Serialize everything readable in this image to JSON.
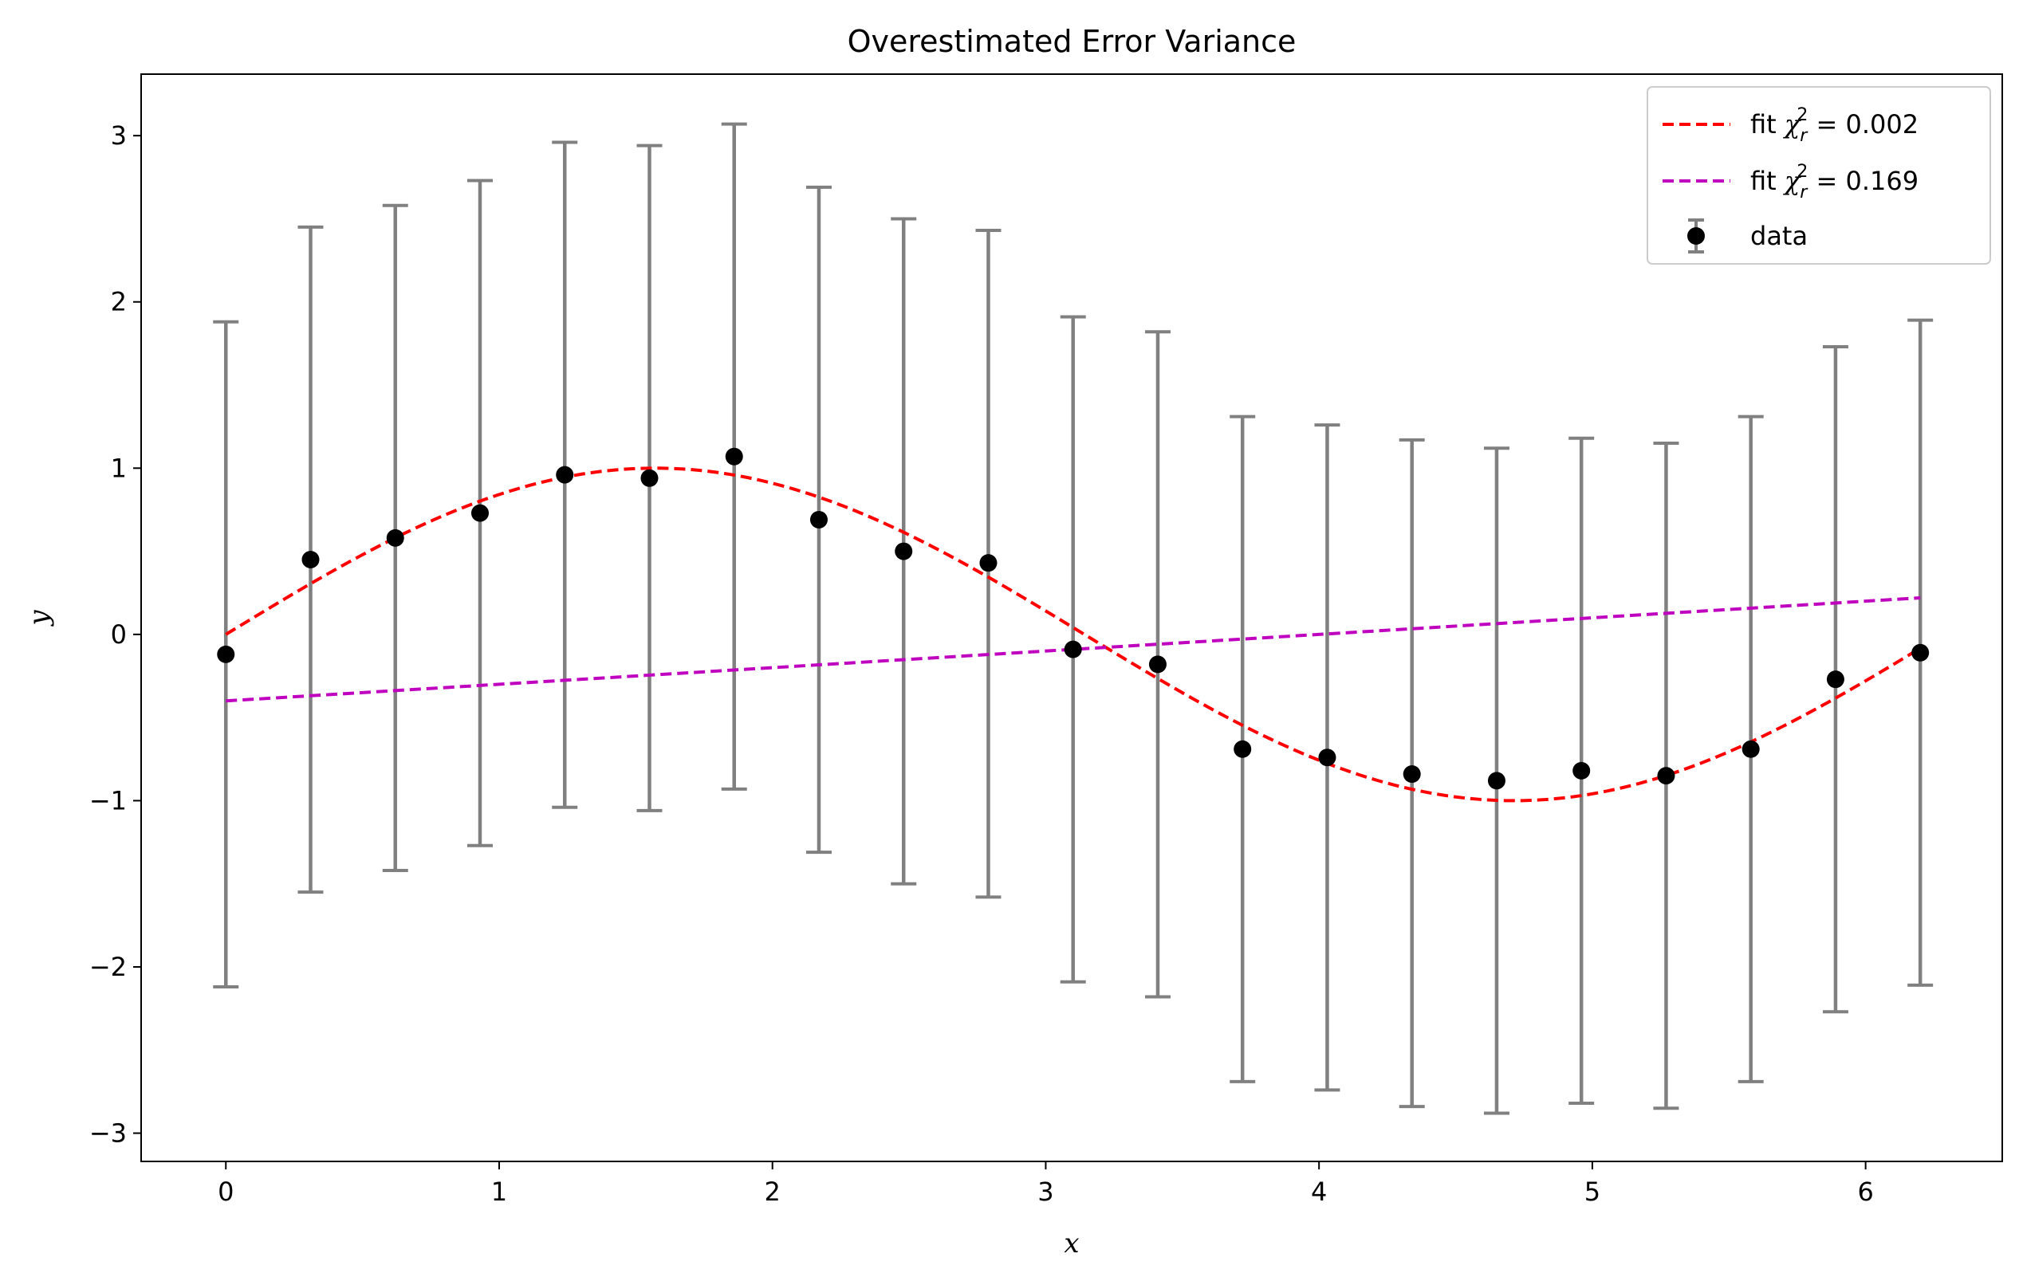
{
  "chart_data": {
    "type": "scatter",
    "title": "Overestimated Error Variance",
    "xlabel": "x",
    "ylabel": "y",
    "xlim": [
      -0.31,
      6.5
    ],
    "ylim": [
      -3.17,
      3.37
    ],
    "xticks": [
      0,
      1,
      2,
      3,
      4,
      5,
      6
    ],
    "yticks": [
      -3,
      -2,
      -1,
      0,
      1,
      2,
      3
    ],
    "ytick_labels": [
      "−3",
      "−2",
      "−1",
      "0",
      "1",
      "2",
      "3"
    ],
    "grid": false,
    "legend_position": "top-right",
    "data_series": {
      "name": "data",
      "marker_color": "#000000",
      "errorbar_color": "#808080",
      "x": [
        0,
        0.31,
        0.62,
        0.93,
        1.24,
        1.55,
        1.86,
        2.17,
        2.48,
        2.79,
        3.1,
        3.41,
        3.72,
        4.03,
        4.34,
        4.65,
        4.96,
        5.27,
        5.58,
        5.89,
        6.2
      ],
      "y": [
        -0.12,
        0.45,
        0.58,
        0.73,
        0.96,
        0.94,
        1.07,
        0.69,
        0.5,
        0.43,
        -0.09,
        -0.18,
        -0.69,
        -0.74,
        -0.84,
        -0.88,
        -0.82,
        -0.85,
        -0.69,
        -0.27,
        -0.11
      ],
      "yerr_low": [
        -2.12,
        -1.55,
        -1.42,
        -1.27,
        -1.04,
        -1.06,
        -0.93,
        -1.31,
        -1.5,
        -1.58,
        -2.09,
        -2.18,
        -2.69,
        -2.74,
        -2.84,
        -2.88,
        -2.82,
        -2.85,
        -2.69,
        -2.27,
        -2.11
      ],
      "yerr_high": [
        1.88,
        2.45,
        2.58,
        2.73,
        2.96,
        2.94,
        3.07,
        2.69,
        2.5,
        2.43,
        1.91,
        1.82,
        1.31,
        1.26,
        1.17,
        1.12,
        1.18,
        1.15,
        1.31,
        1.73,
        1.89
      ]
    },
    "fit_series": [
      {
        "name_prefix": "fit ",
        "chi_symbol": "χ",
        "chi_sub": "r",
        "chi_sup": "2",
        "chi_value": " = 0.002",
        "color": "#ff0000",
        "model": "sine",
        "amplitude": 1.0,
        "x_range": [
          0,
          6.2
        ]
      },
      {
        "name_prefix": "fit ",
        "chi_symbol": "χ",
        "chi_sub": "r",
        "chi_sup": "2",
        "chi_value": " = 0.169",
        "color": "#bf00bf",
        "model": "linear",
        "slope": 0.1,
        "intercept": -0.4,
        "x_range": [
          0,
          6.2
        ]
      }
    ]
  }
}
